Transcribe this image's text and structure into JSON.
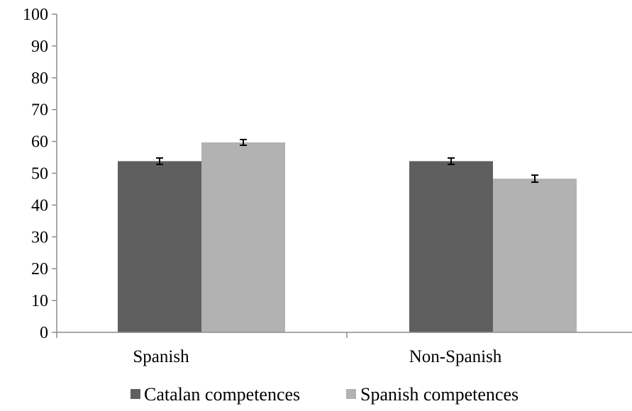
{
  "chart_data": {
    "type": "bar",
    "categories": [
      "Spanish",
      "Non-Spanish"
    ],
    "series": [
      {
        "name": "Catalan competences",
        "values": [
          53.8,
          53.8
        ],
        "errors": [
          1.0,
          1.0
        ],
        "color": "#5f5f5f"
      },
      {
        "name": "Spanish competences",
        "values": [
          59.7,
          48.3
        ],
        "errors": [
          0.9,
          1.1
        ],
        "color": "#b2b2b2"
      }
    ],
    "title": "",
    "xlabel": "",
    "ylabel": "",
    "ylim": [
      0,
      100
    ],
    "yticks": [
      0,
      10,
      20,
      30,
      40,
      50,
      60,
      70,
      80,
      90,
      100
    ],
    "ytick_labels": [
      "0",
      "10",
      "20",
      "30",
      "40",
      "50",
      "60",
      "70",
      "80",
      "90",
      "100"
    ],
    "grid": false,
    "error_bars": true,
    "legend": {
      "placement": "bottom"
    },
    "colors": {
      "axis": "#8c8c8c",
      "error_bar": "#000000"
    }
  }
}
